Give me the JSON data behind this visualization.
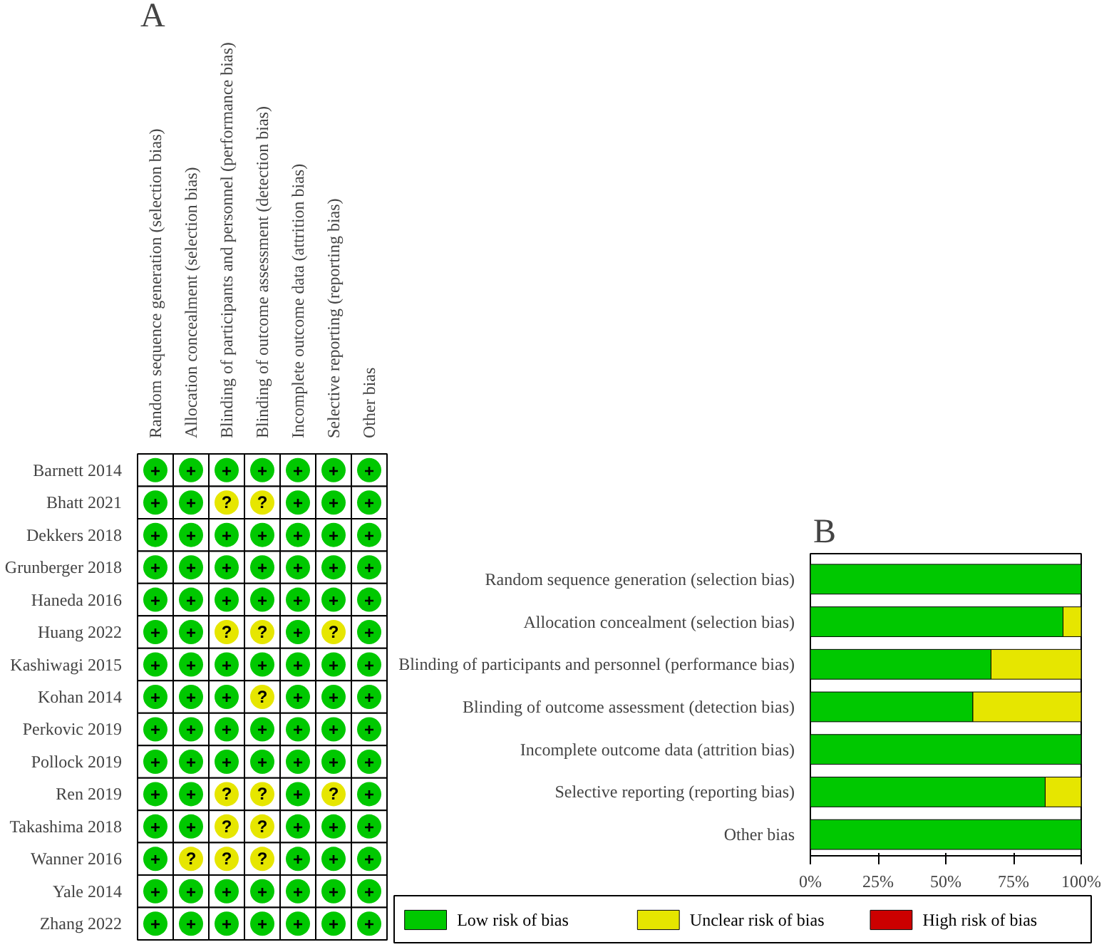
{
  "chart_data": [
    {
      "type": "heatmap",
      "annotations": [
        "A"
      ],
      "categories": [
        "Random sequence generation (selection bias)",
        "Allocation concealment (selection bias)",
        "Blinding of participants and personnel (performance bias)",
        "Blinding of outcome assessment (detection bias)",
        "Incomplete outcome data (attrition bias)",
        "Selective reporting (reporting bias)",
        "Other bias"
      ],
      "y_categories": [
        "Barnett 2014",
        "Bhatt 2021",
        "Dekkers 2018",
        "Grunberger 2018",
        "Haneda 2016",
        "Huang 2022",
        "Kashiwagi 2015",
        "Kohan 2014",
        "Perkovic 2019",
        "Pollock 2019",
        "Ren 2019",
        "Takashima 2018",
        "Wanner 2016",
        "Yale 2014",
        "Zhang 2022"
      ],
      "colors": [
        "#00c800",
        "#e6e600"
      ],
      "cells": [
        [
          "+",
          "+",
          "+",
          "+",
          "+",
          "+",
          "+"
        ],
        [
          "+",
          "+",
          "?",
          "?",
          "+",
          "+",
          "+"
        ],
        [
          "+",
          "+",
          "+",
          "+",
          "+",
          "+",
          "+"
        ],
        [
          "+",
          "+",
          "+",
          "+",
          "+",
          "+",
          "+"
        ],
        [
          "+",
          "+",
          "+",
          "+",
          "+",
          "+",
          "+"
        ],
        [
          "+",
          "+",
          "?",
          "?",
          "+",
          "?",
          "+"
        ],
        [
          "+",
          "+",
          "+",
          "+",
          "+",
          "+",
          "+"
        ],
        [
          "+",
          "+",
          "+",
          "?",
          "+",
          "+",
          "+"
        ],
        [
          "+",
          "+",
          "+",
          "+",
          "+",
          "+",
          "+"
        ],
        [
          "+",
          "+",
          "+",
          "+",
          "+",
          "+",
          "+"
        ],
        [
          "+",
          "+",
          "?",
          "?",
          "+",
          "?",
          "+"
        ],
        [
          "+",
          "+",
          "?",
          "?",
          "+",
          "+",
          "+"
        ],
        [
          "+",
          "?",
          "?",
          "?",
          "+",
          "+",
          "+"
        ],
        [
          "+",
          "+",
          "+",
          "+",
          "+",
          "+",
          "+"
        ],
        [
          "+",
          "+",
          "+",
          "+",
          "+",
          "+",
          "+"
        ]
      ]
    },
    {
      "type": "bar",
      "orientation": "horizontal",
      "stacked": true,
      "annotations": [
        "B"
      ],
      "categories": [
        "Random sequence generation (selection bias)",
        "Allocation concealment (selection bias)",
        "Blinding of participants and personnel (performance bias)",
        "Blinding of outcome assessment (detection bias)",
        "Incomplete outcome data (attrition bias)",
        "Selective reporting (reporting bias)",
        "Other bias"
      ],
      "series": [
        {
          "name": "Low risk of bias",
          "color": "#00c800",
          "values": [
            100,
            93.3,
            66.7,
            60,
            100,
            86.7,
            100
          ]
        },
        {
          "name": "Unclear risk of bias",
          "color": "#e6e600",
          "values": [
            0,
            6.7,
            33.3,
            40,
            0,
            13.3,
            0
          ]
        },
        {
          "name": "High risk of bias",
          "color": "#cc0000",
          "values": [
            0,
            0,
            0,
            0,
            0,
            0,
            0
          ]
        }
      ],
      "xlim": [
        0,
        100
      ],
      "xticks": [
        {
          "value": 0,
          "label": "0%"
        },
        {
          "value": 25,
          "label": "25%"
        },
        {
          "value": 50,
          "label": "50%"
        },
        {
          "value": 75,
          "label": "75%"
        },
        {
          "value": 100,
          "label": "100%"
        }
      ],
      "grid": false,
      "legend": "bottom"
    }
  ]
}
